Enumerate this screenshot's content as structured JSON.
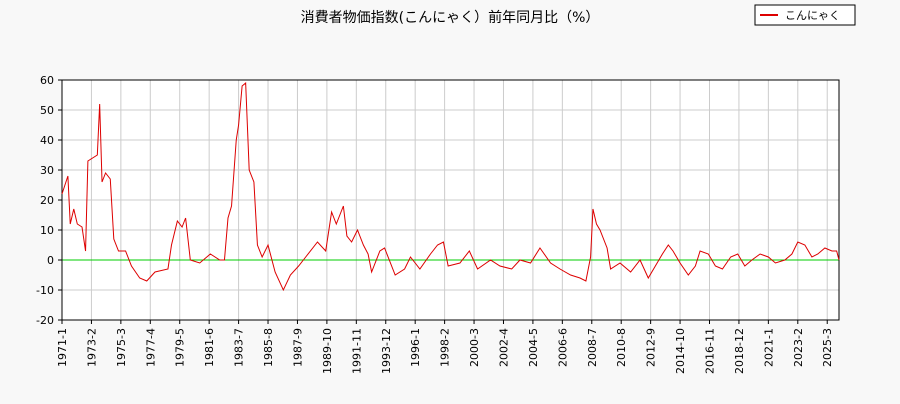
{
  "chart_data": {
    "type": "line",
    "title": "消費者物価指数(こんにゃく）前年同月比（%）",
    "x": [
      "1971-1",
      "1971-6",
      "1971-8",
      "1971-11",
      "1972-2",
      "1972-6",
      "1972-9",
      "1972-11",
      "1973-7",
      "1973-9",
      "1973-11",
      "1974-2",
      "1974-6",
      "1974-9",
      "1975-1",
      "1975-7",
      "1975-12",
      "1976-7",
      "1977-1",
      "1977-8",
      "1978-7",
      "1978-10",
      "1979-3",
      "1979-7",
      "1979-10",
      "1980-2",
      "1980-10",
      "1981-7",
      "1982-3",
      "1982-7",
      "1982-10",
      "1983-1",
      "1983-5",
      "1983-7",
      "1983-10",
      "1984-1",
      "1984-4",
      "1984-8",
      "1984-11",
      "1985-3",
      "1985-8",
      "1986-2",
      "1986-9",
      "1987-3",
      "1987-10",
      "1988-4",
      "1989-2",
      "1989-9",
      "1990-2",
      "1990-6",
      "1990-12",
      "1991-3",
      "1991-7",
      "1991-12",
      "1992-5",
      "1992-9",
      "1992-12",
      "1993-7",
      "1993-11",
      "1994-8",
      "1995-4",
      "1995-9",
      "1996-5",
      "1997-2",
      "1997-8",
      "1998-1",
      "1998-5",
      "1999-3",
      "1999-11",
      "2000-6",
      "2001-5",
      "2002-1",
      "2002-11",
      "2003-6",
      "2004-3",
      "2004-11",
      "2005-8",
      "2006-4",
      "2007-1",
      "2007-9",
      "2008-2",
      "2008-6",
      "2008-8",
      "2008-11",
      "2009-2",
      "2009-8",
      "2009-11",
      "2010-7",
      "2011-4",
      "2011-12",
      "2012-7",
      "2013-1",
      "2013-7",
      "2013-12",
      "2014-4",
      "2014-10",
      "2015-5",
      "2015-11",
      "2016-3",
      "2016-10",
      "2017-4",
      "2017-10",
      "2018-5",
      "2018-11",
      "2019-5",
      "2019-11",
      "2020-6",
      "2021-1",
      "2021-7",
      "2022-3",
      "2022-9",
      "2023-2",
      "2023-8",
      "2024-2",
      "2024-7",
      "2025-1",
      "2025-7",
      "2025-11",
      "2026-1"
    ],
    "series": [
      {
        "name": "こんにゃく",
        "color": "#dd0000",
        "values": [
          22,
          28,
          12,
          17,
          12,
          11,
          3,
          33,
          35,
          52,
          26,
          29,
          27,
          7,
          3,
          3,
          -2,
          -6,
          -7,
          -4,
          -3,
          5,
          13,
          11,
          14,
          0,
          -1,
          2,
          0,
          0,
          14,
          18,
          40,
          45,
          58,
          59,
          30,
          26,
          5,
          1,
          5,
          -4,
          -10,
          -5,
          -2,
          1,
          6,
          3,
          16,
          12,
          18,
          8,
          6,
          10,
          5,
          2,
          -4,
          3,
          4,
          -5,
          -3,
          1,
          -3,
          2,
          5,
          6,
          -2,
          -1,
          3,
          -3,
          0,
          -2,
          -3,
          0,
          -1,
          4,
          -1,
          -3,
          -5,
          -6,
          -7,
          1,
          17,
          12,
          10,
          4,
          -3,
          -1,
          -4,
          0,
          -6,
          -2,
          2,
          5,
          3,
          -1,
          -5,
          -2,
          3,
          2,
          -2,
          -3,
          1,
          2,
          -2,
          0,
          2,
          1,
          -1,
          0,
          2,
          6,
          5,
          1,
          2,
          4,
          3,
          3,
          0
        ]
      }
    ],
    "xlim": [
      "1971-1",
      "2026-1"
    ],
    "xticks": [
      "1971-1",
      "1973-2",
      "1975-3",
      "1977-4",
      "1979-5",
      "1981-6",
      "1983-7",
      "1985-8",
      "1987-9",
      "1989-10",
      "1991-11",
      "1993-12",
      "1996-1",
      "1998-2",
      "2000-3",
      "2002-4",
      "2004-5",
      "2006-6",
      "2008-7",
      "2010-8",
      "2012-9",
      "2014-10",
      "2016-11",
      "2018-12",
      "2021-1",
      "2023-2",
      "2025-3"
    ],
    "ylim": [
      -20,
      60
    ],
    "yticks": [
      -20,
      -10,
      0,
      10,
      20,
      30,
      40,
      50,
      60
    ],
    "grid": true,
    "zero_line_color": "#00cc00",
    "legend": "upper-right"
  }
}
